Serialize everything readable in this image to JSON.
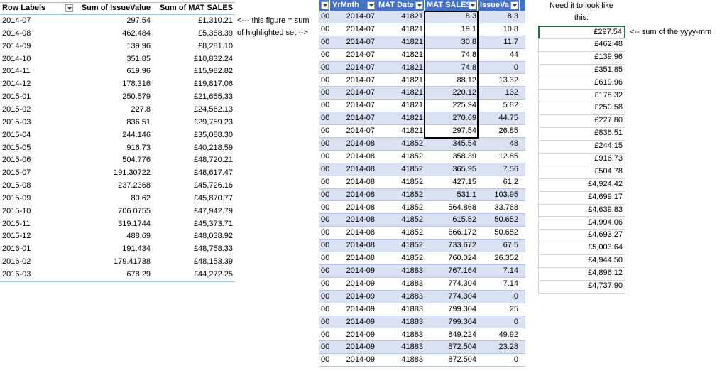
{
  "pivot": {
    "headers": [
      "Row Labels",
      "Sum of IssueValue",
      "Sum of MAT SALES"
    ],
    "rows": [
      [
        "2014-07",
        "297.54",
        "£1,310.21"
      ],
      [
        "2014-08",
        "462.484",
        "£5,368.39"
      ],
      [
        "2014-09",
        "139.96",
        "£8,281.10"
      ],
      [
        "2014-10",
        "351.85",
        "£10,832.24"
      ],
      [
        "2014-11",
        "619.96",
        "£15,982.82"
      ],
      [
        "2014-12",
        "178.316",
        "£19,817.06"
      ],
      [
        "2015-01",
        "250.579",
        "£21,655.33"
      ],
      [
        "2015-02",
        "227.8",
        "£24,562.13"
      ],
      [
        "2015-03",
        "836.51",
        "£29,759.23"
      ],
      [
        "2015-04",
        "244.146",
        "£35,088.30"
      ],
      [
        "2015-05",
        "916.73",
        "£40,218.59"
      ],
      [
        "2015-06",
        "504.776",
        "£48,720.21"
      ],
      [
        "2015-07",
        "191.30722",
        "£48,617.47"
      ],
      [
        "2015-08",
        "237.2368",
        "£45,726.16"
      ],
      [
        "2015-09",
        "80.62",
        "£45,870.77"
      ],
      [
        "2015-10",
        "706.0755",
        "£47,942.79"
      ],
      [
        "2015-11",
        "319.1744",
        "£45,373.71"
      ],
      [
        "2015-12",
        "488.69",
        "£48,038.92"
      ],
      [
        "2016-01",
        "191.434",
        "£48,758.33"
      ],
      [
        "2016-02",
        "179.41738",
        "£48,153.39"
      ],
      [
        "2016-03",
        "678.29",
        "£44,272.25"
      ]
    ]
  },
  "annotations": [
    "<--- this figure = sum",
    "of highlighted set -->",
    "<-- sum of the yyyy-mm"
  ],
  "table": {
    "headers": [
      "YrMnth",
      "MAT Date",
      "MAT SALES",
      "IssueVa"
    ],
    "rows": [
      [
        "00",
        "2014-07",
        "41821",
        "8.3",
        "8.3"
      ],
      [
        "00",
        "2014-07",
        "41821",
        "19.1",
        "10.8"
      ],
      [
        "00",
        "2014-07",
        "41821",
        "30.8",
        "11.7"
      ],
      [
        "00",
        "2014-07",
        "41821",
        "74.8",
        "44"
      ],
      [
        "00",
        "2014-07",
        "41821",
        "74.8",
        "0"
      ],
      [
        "00",
        "2014-07",
        "41821",
        "88.12",
        "13.32"
      ],
      [
        "00",
        "2014-07",
        "41821",
        "220.12",
        "132"
      ],
      [
        "00",
        "2014-07",
        "41821",
        "225.94",
        "5.82"
      ],
      [
        "00",
        "2014-07",
        "41821",
        "270.69",
        "44.75"
      ],
      [
        "00",
        "2014-07",
        "41821",
        "297.54",
        "26.85"
      ],
      [
        "00",
        "2014-08",
        "41852",
        "345.54",
        "48"
      ],
      [
        "00",
        "2014-08",
        "41852",
        "358.39",
        "12.85"
      ],
      [
        "00",
        "2014-08",
        "41852",
        "365.95",
        "7.56"
      ],
      [
        "00",
        "2014-08",
        "41852",
        "427.15",
        "61.2"
      ],
      [
        "00",
        "2014-08",
        "41852",
        "531.1",
        "103.95"
      ],
      [
        "00",
        "2014-08",
        "41852",
        "564.868",
        "33.768"
      ],
      [
        "00",
        "2014-08",
        "41852",
        "615.52",
        "50.652"
      ],
      [
        "00",
        "2014-08",
        "41852",
        "666.172",
        "50.652"
      ],
      [
        "00",
        "2014-08",
        "41852",
        "733.672",
        "67.5"
      ],
      [
        "00",
        "2014-08",
        "41852",
        "760.024",
        "26.352"
      ],
      [
        "00",
        "2014-09",
        "41883",
        "767.164",
        "7.14"
      ],
      [
        "00",
        "2014-09",
        "41883",
        "774.304",
        "7.14"
      ],
      [
        "00",
        "2014-09",
        "41883",
        "774.304",
        "0"
      ],
      [
        "00",
        "2014-09",
        "41883",
        "799.304",
        "25"
      ],
      [
        "00",
        "2014-09",
        "41883",
        "799.304",
        "0"
      ],
      [
        "00",
        "2014-09",
        "41883",
        "849.224",
        "49.92"
      ],
      [
        "00",
        "2014-09",
        "41883",
        "872.504",
        "23.28"
      ],
      [
        "00",
        "2014-09",
        "41883",
        "872.504",
        "0"
      ]
    ]
  },
  "target": {
    "header": "Need it to look like this:",
    "values": [
      "£297.54",
      "£462.48",
      "£139.96",
      "£351.85",
      "£619.96",
      "£178.32",
      "£250.58",
      "£227.80",
      "£836.51",
      "£244.15",
      "£916.73",
      "£504.78",
      "£4,924.42",
      "£4,699.17",
      "£4,639.83",
      "£4,994.06",
      "£4,693.27",
      "£5,003.64",
      "£4,944.50",
      "£4,896.12",
      "£4,737.90"
    ]
  }
}
